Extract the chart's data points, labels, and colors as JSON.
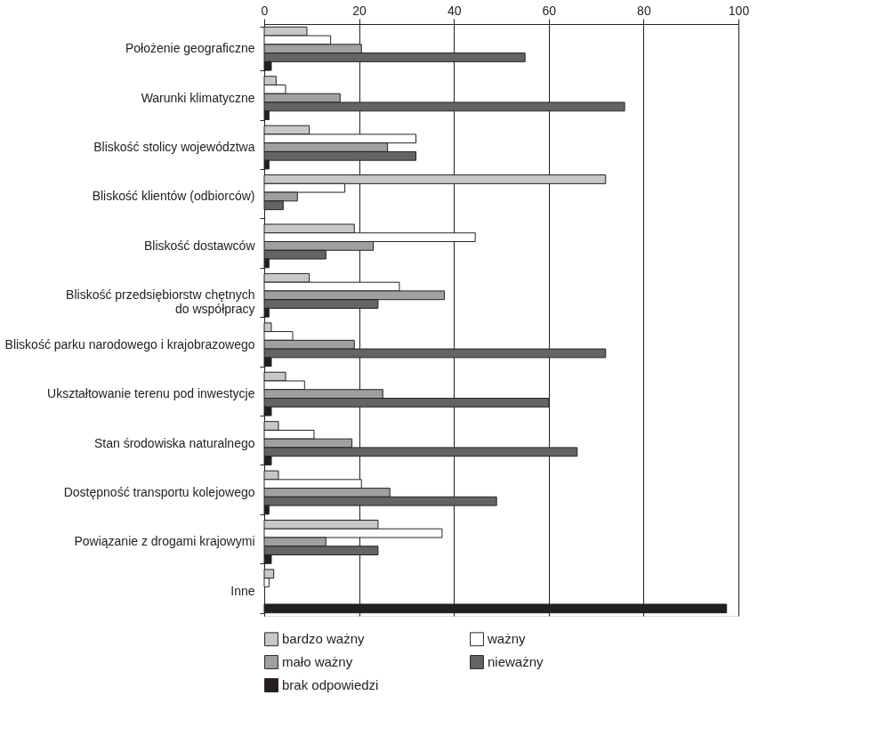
{
  "chart_data": {
    "type": "bar",
    "orientation": "horizontal",
    "categories": [
      "Położenie geograficzne",
      "Warunki klimatyczne",
      "Bliskość stolicy województwa",
      "Bliskość klientów (odbiorców)",
      "Bliskość dostawców",
      "Bliskość przedsiębiorstw chętnych\ndo współpracy",
      "Bliskość parku narodowego i krajobrazowego",
      "Ukształtowanie terenu pod inwestycje",
      "Stan środowiska naturalnego",
      "Dostępność transportu kolejowego",
      "Powiązanie z drogami krajowymi",
      "Inne"
    ],
    "series": [
      {
        "name": "bardzo ważny",
        "color": "#c8c8c8",
        "values": [
          9,
          2.5,
          9.5,
          72,
          19,
          9.5,
          1.5,
          4.5,
          3,
          3,
          24,
          2
        ]
      },
      {
        "name": "ważny",
        "color": "#ffffff",
        "values": [
          14,
          4.5,
          32,
          17,
          44.5,
          28.5,
          6,
          8.5,
          10.5,
          20.5,
          37.5,
          1
        ]
      },
      {
        "name": "mało ważny",
        "color": "#a0a0a0",
        "values": [
          20.5,
          16,
          26,
          7,
          23,
          38,
          19,
          25,
          18.5,
          26.5,
          13,
          null
        ]
      },
      {
        "name": "nieważny",
        "color": "#646464",
        "values": [
          55,
          76,
          32,
          4,
          13,
          24,
          72,
          60,
          66,
          49,
          24,
          null
        ]
      },
      {
        "name": "brak odpowiedzi",
        "color": "#231f20",
        "values": [
          1.5,
          1,
          1,
          null,
          1,
          1,
          1.5,
          1.5,
          1.5,
          1,
          1.5,
          97.5
        ]
      }
    ],
    "xlim": [
      0,
      100
    ],
    "xticks": [
      0,
      20,
      40,
      60,
      80,
      100
    ],
    "grid": "x",
    "legend": "bottom"
  }
}
